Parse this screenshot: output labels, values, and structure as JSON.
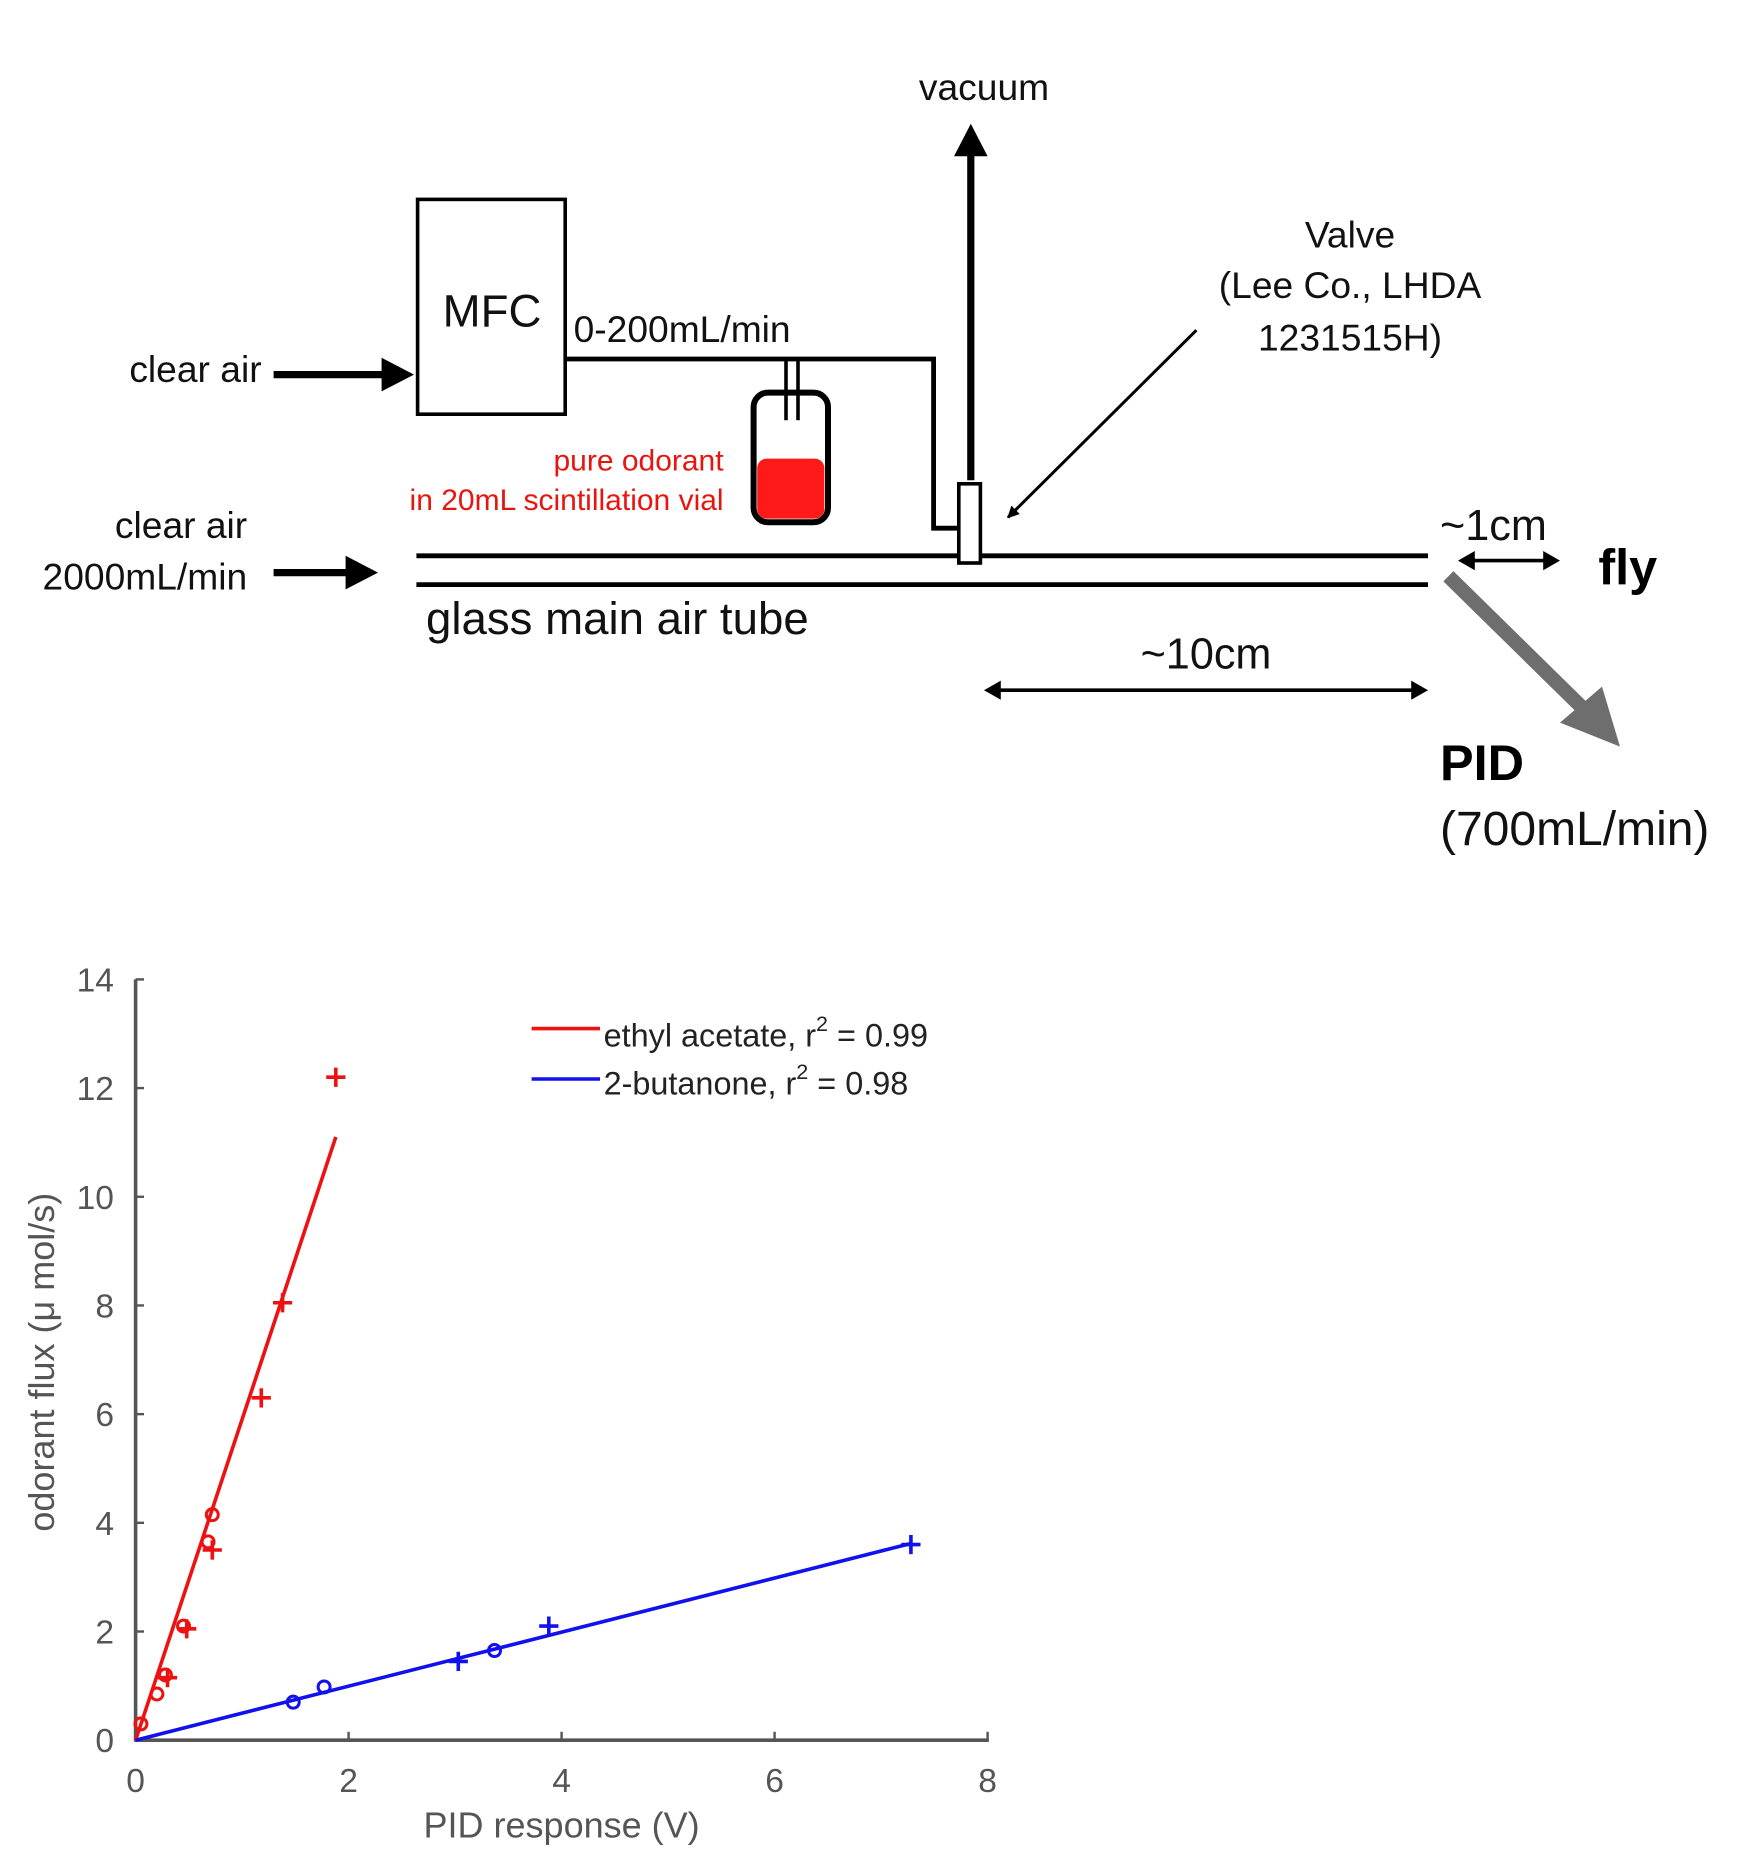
{
  "diagram": {
    "vacuum": "vacuum",
    "mfc": "MFC",
    "clear_air_top": "clear air",
    "mfc_flow": "0-200mL/min",
    "vial_line1": "pure odorant",
    "vial_line2": "in 20mL scintillation vial",
    "valve_line1": "Valve",
    "valve_line2": "(Lee Co., LHDA",
    "valve_line3": "1231515H)",
    "clear_air_main": "clear air",
    "main_flow": "2000mL/min",
    "tube_label": "glass main air tube",
    "dist_10": "~10cm",
    "dist_1": "~1cm",
    "fly": "fly",
    "pid": "PID",
    "pid_flow": "(700mL/min)",
    "colors": {
      "odorant": "#ff1a1a",
      "pid_arrow": "#6e6e6e"
    }
  },
  "chart_data": {
    "type": "scatter",
    "xlabel": "PID response (V)",
    "ylabel": "odorant flux (μ mol/s)",
    "xlim": [
      0,
      8
    ],
    "ylim": [
      0,
      14
    ],
    "xticks": [
      "0",
      "2",
      "4",
      "6",
      "8"
    ],
    "yticks": [
      "0",
      "2",
      "4",
      "6",
      "8",
      "10",
      "12",
      "14"
    ],
    "legend_position": "top-right",
    "series": [
      {
        "name": "ethyl acetate",
        "legend": "ethyl acetate, r",
        "r2_label": " = 0.99",
        "color": "#ee1111",
        "circles": [
          [
            0.05,
            0.3
          ],
          [
            0.2,
            0.85
          ],
          [
            0.28,
            1.2
          ],
          [
            0.45,
            2.1
          ],
          [
            0.68,
            3.65
          ],
          [
            0.72,
            4.15
          ]
        ],
        "plus": [
          [
            0.3,
            1.15
          ],
          [
            0.48,
            2.05
          ],
          [
            0.72,
            3.5
          ],
          [
            1.18,
            6.3
          ],
          [
            1.38,
            8.05
          ],
          [
            1.88,
            12.2
          ]
        ],
        "fit": [
          [
            0,
            0
          ],
          [
            1.88,
            11.1
          ]
        ]
      },
      {
        "name": "2-butanone",
        "legend": "2-butanone, r",
        "r2_label": " = 0.98",
        "color": "#1111ee",
        "circles": [
          [
            1.48,
            0.7
          ],
          [
            1.77,
            0.98
          ],
          [
            3.37,
            1.65
          ]
        ],
        "plus": [
          [
            3.03,
            1.45
          ],
          [
            3.88,
            2.1
          ],
          [
            7.28,
            3.6
          ]
        ],
        "fit": [
          [
            0,
            0
          ],
          [
            7.28,
            3.62
          ]
        ]
      }
    ]
  }
}
